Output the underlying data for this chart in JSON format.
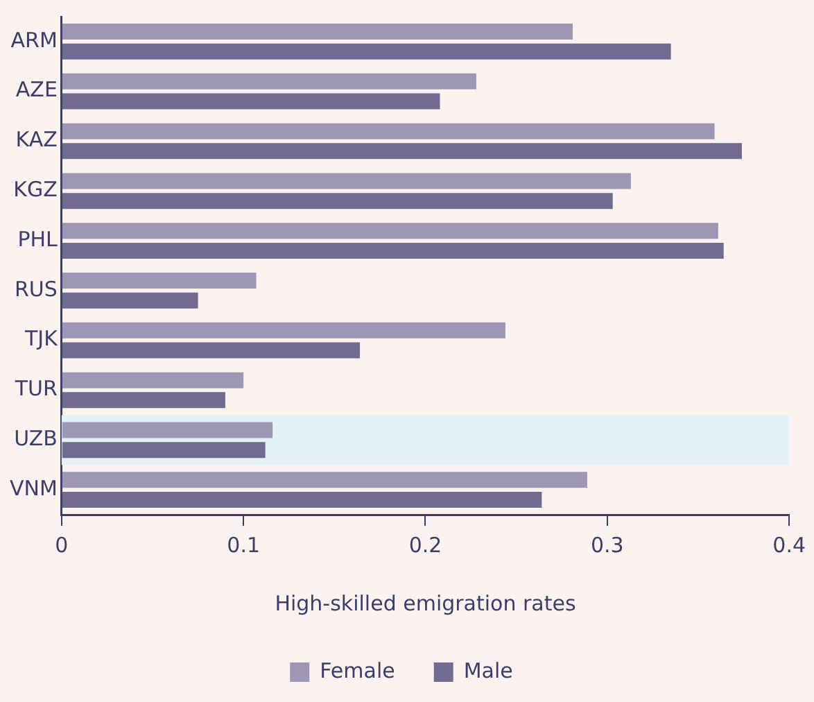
{
  "chart_data": {
    "type": "bar",
    "orientation": "horizontal",
    "xlabel": "High-skilled emigration rates",
    "categories": [
      "ARM",
      "AZE",
      "KAZ",
      "KGZ",
      "PHL",
      "RUS",
      "TJK",
      "TUR",
      "UZB",
      "VNM"
    ],
    "series": [
      {
        "name": "Female",
        "color": "#9d97b5",
        "values": [
          0.281,
          0.228,
          0.359,
          0.313,
          0.361,
          0.107,
          0.244,
          0.1,
          0.116,
          0.289
        ]
      },
      {
        "name": "Male",
        "color": "#716b92",
        "values": [
          0.335,
          0.208,
          0.374,
          0.303,
          0.364,
          0.075,
          0.164,
          0.09,
          0.112,
          0.264
        ]
      }
    ],
    "xlim": [
      0,
      0.4
    ],
    "xticks": [
      0,
      0.1,
      0.2,
      0.3,
      0.4
    ],
    "grid": false,
    "legend": "bottom",
    "bands": [
      {
        "axis": "y",
        "from": "UZB",
        "to": "UZB",
        "color": "#e2f2f5"
      }
    ]
  }
}
